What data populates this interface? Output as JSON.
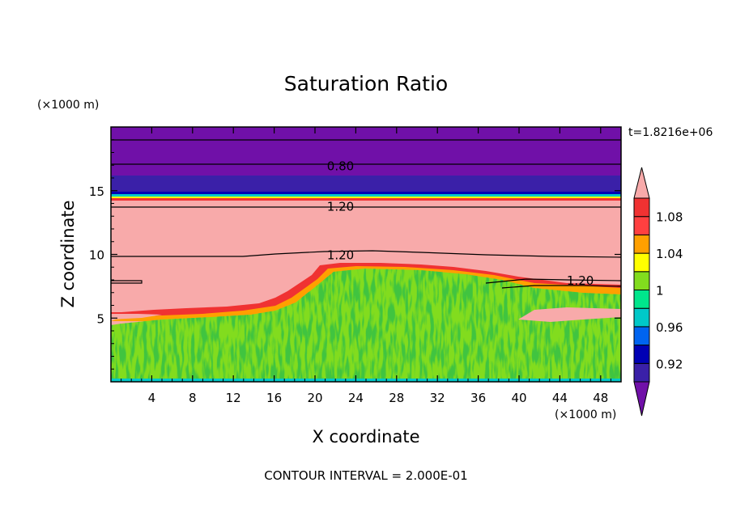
{
  "chart_data": {
    "type": "heatmap",
    "title": "Saturation Ratio",
    "xlabel": "X coordinate",
    "ylabel": "Z coordinate",
    "x_unit": "(×1000 m)",
    "y_unit": "(×1000 m)",
    "time_label": "t=1.8216e+06",
    "footer": "CONTOUR INTERVAL = 2.000E-01",
    "xlim": [
      0,
      50
    ],
    "ylim": [
      0,
      20
    ],
    "x_ticks": [
      4,
      8,
      12,
      16,
      20,
      24,
      28,
      32,
      36,
      40,
      44,
      48
    ],
    "y_ticks": [
      5,
      10,
      15
    ],
    "colorbar": {
      "levels": [
        0.9,
        0.92,
        0.94,
        0.96,
        0.98,
        1.0,
        1.02,
        1.04,
        1.06,
        1.08,
        1.1
      ],
      "colors": [
        "#7010a8",
        "#3a20a8",
        "#0000b4",
        "#0064f0",
        "#00c8c8",
        "#00e68c",
        "#82dc1e",
        "#ffff00",
        "#ffa000",
        "#ff4040",
        "#f03232",
        "#f8aaaa"
      ],
      "labels": [
        "1.08",
        "1.04",
        "1",
        "0.96",
        "0.92"
      ],
      "label_values": [
        1.08,
        1.04,
        1.0,
        0.96,
        0.92
      ]
    },
    "contour_labels": [
      {
        "text": "0.80",
        "x": 22.5,
        "z": 17.0
      },
      {
        "text": "1.20",
        "x": 22.5,
        "z": 13.8
      },
      {
        "text": "1.20",
        "x": 22.5,
        "z": 10.0
      },
      {
        "text": "1.20",
        "x": 46.0,
        "z": 8.0
      }
    ]
  }
}
